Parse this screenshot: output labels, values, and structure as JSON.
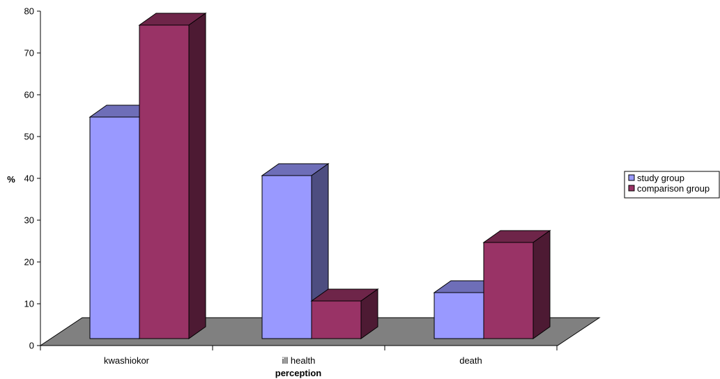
{
  "chart_data": {
    "type": "bar",
    "style": "3d-clustered-column",
    "title": "",
    "xlabel": "perception",
    "ylabel": "%",
    "ylim": [
      0,
      80
    ],
    "yticks": [
      0,
      10,
      20,
      30,
      40,
      50,
      60,
      70,
      80
    ],
    "categories": [
      "kwashiokor",
      "ill health",
      "death"
    ],
    "series": [
      {
        "name": "study group",
        "values": [
          53,
          39,
          11
        ],
        "color": "#9999ff"
      },
      {
        "name": "comparison group",
        "values": [
          75,
          9,
          23
        ],
        "color": "#993366"
      }
    ],
    "grid": false,
    "legend_position": "right",
    "floor_color": "#808080"
  }
}
